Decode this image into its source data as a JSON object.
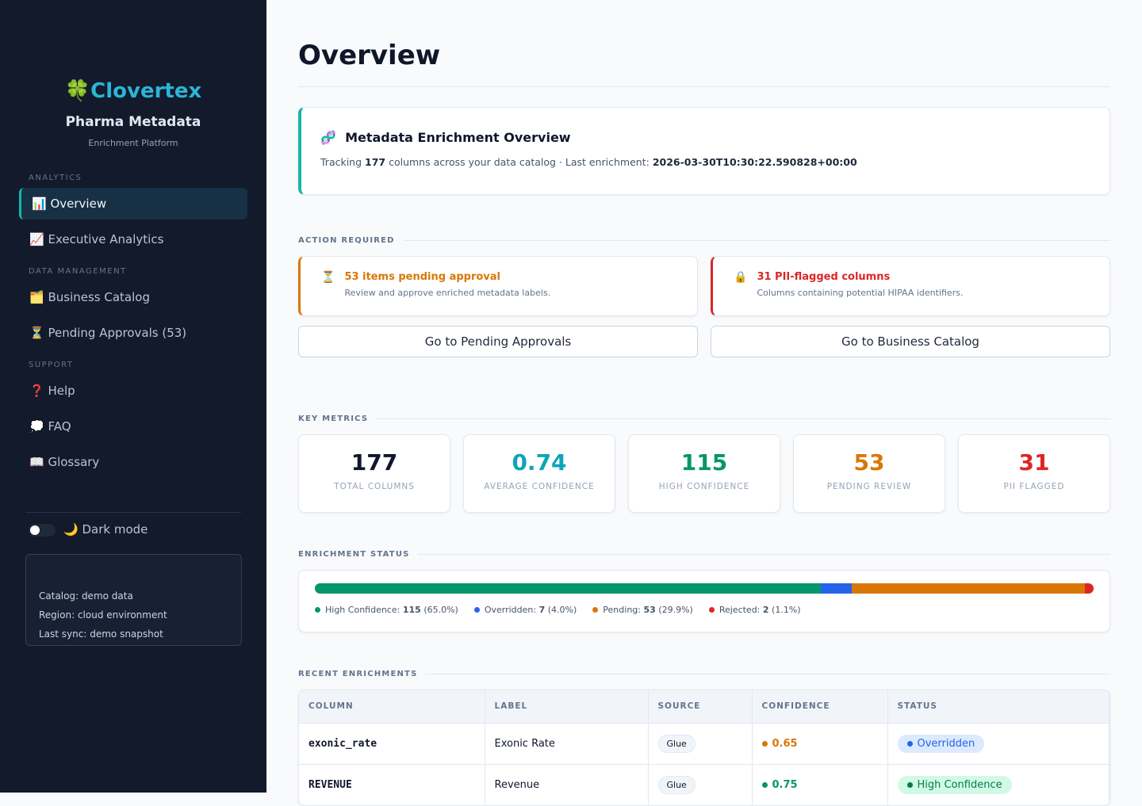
{
  "sidebar": {
    "logo": {
      "icon": "🍀",
      "name": "Clovertex"
    },
    "app_title": "Pharma Metadata",
    "app_subtitle": "Enrichment Platform",
    "sections": [
      {
        "title": "ANALYTICS",
        "items": [
          {
            "icon": "📊",
            "label": "Overview"
          },
          {
            "icon": "📈",
            "label": "Executive Analytics"
          }
        ]
      },
      {
        "title": "DATA MANAGEMENT",
        "items": [
          {
            "icon": "🗂️",
            "label": "Business Catalog"
          },
          {
            "icon": "⏳",
            "label": "Pending Approvals (53)"
          }
        ]
      },
      {
        "title": "SUPPORT",
        "items": [
          {
            "icon": "❓",
            "label": "Help"
          },
          {
            "icon": "💭",
            "label": "FAQ"
          },
          {
            "icon": "📖",
            "label": "Glossary"
          }
        ]
      }
    ],
    "dark_mode": {
      "icon": "🌙",
      "label": "Dark mode"
    },
    "info": [
      "Catalog: demo data",
      "Region: cloud environment",
      "Last sync: demo snapshot"
    ]
  },
  "header": {
    "title": "Overview"
  },
  "intro": {
    "icon": "🧬",
    "title": "Metadata Enrichment Overview",
    "text": [
      "Tracking ",
      "177",
      " columns across your data catalog · Last enrichment: ",
      "2026-03-30T10:30:22.590828+00:00"
    ]
  },
  "action_required": {
    "title": "ACTION REQUIRED",
    "alerts": [
      {
        "icon": "⏳",
        "title": "53 items pending approval",
        "text": "Review and approve enriched metadata labels.",
        "color": "#d97706"
      },
      {
        "icon": "🔒",
        "title": "31 PII-flagged columns",
        "text": "Columns containing potential HIPAA identifiers.",
        "color": "#dc2626"
      }
    ],
    "buttons": [
      "Go to Pending Approvals",
      "Go to Business Catalog"
    ]
  },
  "key_metrics": {
    "title": "KEY METRICS",
    "items": [
      {
        "value": "177",
        "label": "TOTAL COLUMNS",
        "color": "#0f172a"
      },
      {
        "value": "0.74",
        "label": "AVERAGE CONFIDENCE",
        "color": "#0ea5b7"
      },
      {
        "value": "115",
        "label": "HIGH CONFIDENCE",
        "color": "#059669"
      },
      {
        "value": "53",
        "label": "PENDING REVIEW",
        "color": "#d97706"
      },
      {
        "value": "31",
        "label": "PII FLAGGED",
        "color": "#dc2626"
      }
    ]
  },
  "enrichment_status": {
    "title": "ENRICHMENT STATUS",
    "segments": [
      {
        "name": "High Confidence:",
        "count": 115,
        "percent": "(65.0%)",
        "color": "#059669"
      },
      {
        "name": "Overridden:",
        "count": 7,
        "percent": "(4.0%)",
        "color": "#2563eb"
      },
      {
        "name": "Pending:",
        "count": 53,
        "percent": "(29.9%)",
        "color": "#d97706"
      },
      {
        "name": "Rejected:",
        "count": 2,
        "percent": "(1.1%)",
        "color": "#dc2626"
      }
    ]
  },
  "recent_enrichments": {
    "title": "RECENT ENRICHMENTS",
    "columns": [
      "COLUMN",
      "LABEL",
      "SOURCE",
      "CONFIDENCE",
      "STATUS"
    ],
    "rows": [
      {
        "column": "exonic_rate",
        "label": "Exonic Rate",
        "source": "Glue",
        "confidence": "0.65",
        "confidence_color": "#d97706",
        "status": "Overridden",
        "status_color": "#2563eb",
        "status_bg": "#dbeafe"
      },
      {
        "column": "REVENUE",
        "label": "Revenue",
        "source": "Glue",
        "confidence": "0.75",
        "confidence_color": "#059669",
        "status": "High Confidence",
        "status_color": "#047857",
        "status_bg": "#d1fae5"
      }
    ]
  }
}
